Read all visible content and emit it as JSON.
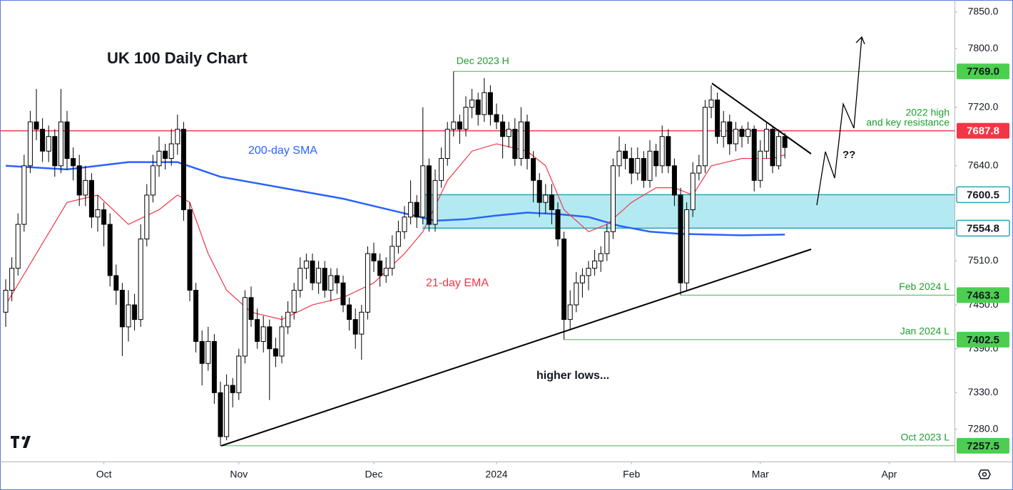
{
  "chart_data": {
    "type": "candlestick",
    "title": "UK 100 Daily Chart",
    "open": [
      7440,
      7470,
      7500,
      7560,
      7640,
      7700,
      7690,
      7660,
      7680,
      7640,
      7700,
      7650,
      7640,
      7600,
      7620,
      7570,
      7580,
      7560,
      7490,
      7470,
      7420,
      7450,
      7430,
      7540,
      7600,
      7640,
      7660,
      7650,
      7670,
      7690,
      7580,
      7470,
      7400,
      7370,
      7400,
      7330,
      7270,
      7340,
      7330,
      7380,
      7460,
      7430,
      7400,
      7420,
      7390,
      7380,
      7420,
      7440,
      7470,
      7500,
      7510,
      7480,
      7500,
      7470,
      7490,
      7480,
      7450,
      7430,
      7410,
      7440,
      7520,
      7510,
      7490,
      7500,
      7530,
      7550,
      7570,
      7590,
      7570,
      7640,
      7560,
      7620,
      7650,
      7690,
      7700,
      7690,
      7720,
      7730,
      7710,
      7740,
      7710,
      7700,
      7680,
      7690,
      7650,
      7700,
      7650,
      7620,
      7590,
      7600,
      7580,
      7540,
      7430,
      7450,
      7480,
      7490,
      7500,
      7510,
      7520,
      7550,
      7640,
      7660,
      7650,
      7630,
      7650,
      7620,
      7660,
      7640,
      7680,
      7640,
      7600,
      7480,
      7580,
      7630,
      7640,
      7720,
      7730,
      7680,
      7700,
      7670,
      7690,
      7680,
      7690,
      7620,
      7660,
      7690,
      7640,
      7680
    ],
    "high": [
      7485,
      7515,
      7575,
      7655,
      7715,
      7745,
      7705,
      7695,
      7690,
      7745,
      7715,
      7665,
      7655,
      7640,
      7630,
      7600,
      7590,
      7575,
      7505,
      7480,
      7470,
      7465,
      7560,
      7615,
      7655,
      7680,
      7670,
      7690,
      7710,
      7700,
      7590,
      7480,
      7415,
      7420,
      7410,
      7345,
      7355,
      7350,
      7390,
      7470,
      7475,
      7445,
      7435,
      7430,
      7405,
      7435,
      7455,
      7480,
      7515,
      7520,
      7520,
      7510,
      7510,
      7500,
      7500,
      7490,
      7460,
      7445,
      7450,
      7530,
      7535,
      7520,
      7515,
      7545,
      7565,
      7585,
      7620,
      7600,
      7720,
      7650,
      7635,
      7665,
      7700,
      7769,
      7710,
      7735,
      7745,
      7740,
      7760,
      7750,
      7725,
      7710,
      7700,
      7705,
      7720,
      7710,
      7660,
      7630,
      7615,
      7615,
      7590,
      7550,
      7470,
      7495,
      7500,
      7510,
      7525,
      7530,
      7560,
      7650,
      7680,
      7670,
      7665,
      7665,
      7660,
      7675,
      7670,
      7695,
      7690,
      7650,
      7610,
      7590,
      7645,
      7655,
      7730,
      7750,
      7740,
      7715,
      7710,
      7700,
      7695,
      7700,
      7695,
      7675,
      7700,
      7695,
      7690,
      7685
    ],
    "low": [
      7420,
      7455,
      7490,
      7550,
      7630,
      7675,
      7645,
      7645,
      7625,
      7630,
      7635,
      7620,
      7585,
      7585,
      7555,
      7550,
      7530,
      7475,
      7450,
      7380,
      7400,
      7415,
      7420,
      7530,
      7590,
      7625,
      7635,
      7640,
      7655,
      7565,
      7455,
      7385,
      7340,
      7360,
      7315,
      7257.5,
      7265,
      7310,
      7320,
      7370,
      7420,
      7390,
      7385,
      7320,
      7365,
      7370,
      7410,
      7430,
      7460,
      7485,
      7470,
      7465,
      7460,
      7455,
      7465,
      7440,
      7415,
      7390,
      7375,
      7430,
      7495,
      7475,
      7480,
      7490,
      7520,
      7540,
      7560,
      7555,
      7560,
      7550,
      7550,
      7610,
      7640,
      7680,
      7670,
      7680,
      7705,
      7695,
      7700,
      7695,
      7690,
      7650,
      7665,
      7640,
      7640,
      7635,
      7590,
      7570,
      7575,
      7560,
      7530,
      7402.5,
      7415,
      7440,
      7460,
      7470,
      7490,
      7495,
      7510,
      7540,
      7625,
      7635,
      7615,
      7620,
      7610,
      7610,
      7625,
      7630,
      7630,
      7585,
      7463.3,
      7470,
      7570,
      7620,
      7630,
      7705,
      7670,
      7665,
      7655,
      7660,
      7665,
      7670,
      7605,
      7610,
      7650,
      7630,
      7635,
      7650
    ],
    "close": [
      7470,
      7500,
      7560,
      7640,
      7700,
      7690,
      7660,
      7680,
      7640,
      7700,
      7650,
      7640,
      7600,
      7620,
      7570,
      7580,
      7560,
      7490,
      7470,
      7420,
      7450,
      7430,
      7540,
      7600,
      7640,
      7660,
      7650,
      7670,
      7690,
      7580,
      7470,
      7400,
      7370,
      7400,
      7330,
      7270,
      7340,
      7330,
      7380,
      7460,
      7430,
      7400,
      7420,
      7390,
      7380,
      7420,
      7440,
      7470,
      7500,
      7510,
      7480,
      7500,
      7470,
      7490,
      7480,
      7450,
      7430,
      7410,
      7440,
      7520,
      7510,
      7490,
      7500,
      7530,
      7550,
      7570,
      7590,
      7570,
      7640,
      7560,
      7620,
      7650,
      7690,
      7700,
      7690,
      7720,
      7730,
      7710,
      7740,
      7710,
      7700,
      7680,
      7690,
      7650,
      7700,
      7650,
      7620,
      7590,
      7600,
      7580,
      7540,
      7430,
      7450,
      7480,
      7490,
      7500,
      7510,
      7520,
      7550,
      7640,
      7660,
      7650,
      7630,
      7650,
      7620,
      7660,
      7640,
      7680,
      7640,
      7600,
      7480,
      7580,
      7630,
      7640,
      7720,
      7730,
      7680,
      7700,
      7670,
      7690,
      7680,
      7690,
      7620,
      7660,
      7690,
      7640,
      7680,
      7665
    ],
    "up_color": "#ffffff",
    "down_color": "#000000",
    "ema": {
      "name": "21-day EMA",
      "color": "#f23645",
      "x": [
        0,
        5,
        10,
        15,
        20,
        25,
        28,
        30,
        33,
        36,
        40,
        45,
        50,
        55,
        60,
        65,
        68,
        72,
        76,
        80,
        85,
        88,
        91,
        95,
        98,
        102,
        106,
        109,
        112,
        115,
        120,
        125,
        127
      ],
      "values": [
        7450,
        7520,
        7590,
        7600,
        7560,
        7580,
        7600,
        7590,
        7520,
        7470,
        7440,
        7430,
        7450,
        7460,
        7480,
        7520,
        7550,
        7620,
        7660,
        7670,
        7660,
        7640,
        7580,
        7550,
        7560,
        7590,
        7610,
        7610,
        7600,
        7640,
        7650,
        7650,
        7655
      ]
    },
    "sma": {
      "name": "200-day SMA",
      "color": "#2962ff",
      "x": [
        0,
        10,
        20,
        28,
        35,
        45,
        55,
        65,
        70,
        75,
        80,
        85,
        90,
        95,
        100,
        105,
        110,
        115,
        120,
        127
      ],
      "values": [
        7640,
        7635,
        7645,
        7645,
        7625,
        7610,
        7595,
        7575,
        7565,
        7567,
        7572,
        7576,
        7574,
        7570,
        7558,
        7550,
        7547,
        7546,
        7545,
        7546
      ]
    },
    "levels": [
      {
        "value": 7769,
        "label": "7769.0",
        "color": "#4caf50",
        "notes": [
          "Dec 2023 H"
        ]
      },
      {
        "value": 7687.8,
        "label": "7687.8",
        "color": "#f23645",
        "notes": [
          "2022 high",
          "and key resistance"
        ]
      },
      {
        "value": 7600.5,
        "label": "7600.5",
        "color": "#26a6b8",
        "zone": true
      },
      {
        "value": 7554.8,
        "label": "7554.8",
        "color": "#26a6b8",
        "zone": true
      },
      {
        "value": 7463.3,
        "label": "7463.3",
        "color": "#4caf50",
        "notes": [
          "Feb 2024 L"
        ]
      },
      {
        "value": 7402.5,
        "label": "7402.5",
        "color": "#4caf50",
        "notes": [
          "Jan 2024 L"
        ]
      },
      {
        "value": 7257.5,
        "label": "7257.5",
        "color": "#4caf50",
        "notes": [
          "Oct 2023 L"
        ]
      }
    ],
    "annotations": [
      "higher lows...",
      "??"
    ],
    "xlim": [
      -0.93,
      154.65
    ],
    "ylim": [
      7236,
      7866.5
    ],
    "xticks": [
      {
        "value": 16,
        "label": "Oct"
      },
      {
        "value": 38,
        "label": "Nov"
      },
      {
        "value": 60,
        "label": "Dec"
      },
      {
        "value": 80,
        "label": "2024"
      },
      {
        "value": 102,
        "label": "Feb"
      },
      {
        "value": 123,
        "label": "Mar"
      },
      {
        "value": 144,
        "label": "Apr"
      }
    ],
    "yticks": [
      {
        "value": 7850,
        "label": "7850.0"
      },
      {
        "value": 7800,
        "label": "7800.0"
      },
      {
        "value": 7720,
        "label": "7720.0"
      },
      {
        "value": 7640,
        "label": "7640.0"
      },
      {
        "value": 7510,
        "label": "7510.0"
      },
      {
        "value": 7450,
        "label": "7450.0"
      },
      {
        "value": 7390,
        "label": "7390.0"
      },
      {
        "value": 7330,
        "label": "7330.0"
      },
      {
        "value": 7280,
        "label": "7280.0"
      }
    ]
  }
}
